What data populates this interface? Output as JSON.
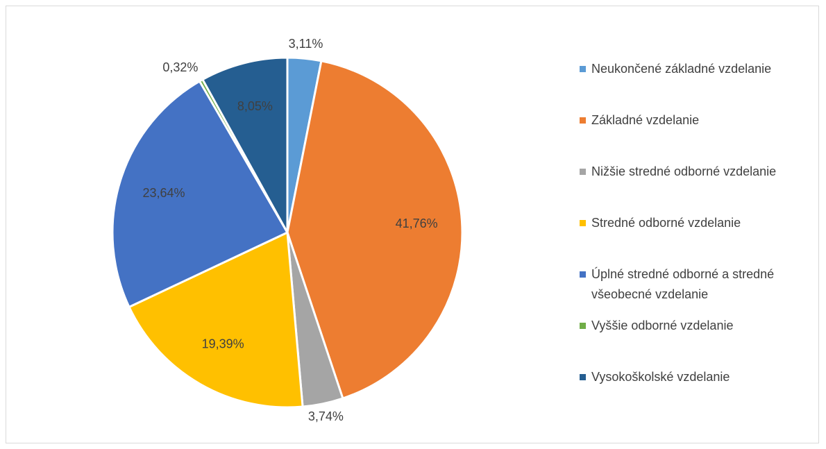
{
  "chart_data": {
    "type": "pie",
    "categories": [
      "Neukončené základné vzdelanie",
      "Základné vzdelanie",
      "Nižšie stredné odborné vzdelanie",
      "Stredné odborné vzdelanie",
      "Úplné stredné odborné a stredné všeobecné vzdelanie",
      "Vyššie odborné vzdelanie",
      "Vysokoškolské vzdelanie"
    ],
    "values": [
      3.11,
      41.76,
      3.74,
      19.39,
      23.64,
      0.32,
      8.05
    ],
    "value_labels": [
      "3,11%",
      "41,76%",
      "3,74%",
      "19,39%",
      "23,64%",
      "0,32%",
      "8,05%"
    ],
    "colors": [
      "#5b9bd5",
      "#ed7d31",
      "#a5a5a5",
      "#ffc000",
      "#4472c4",
      "#70ad47",
      "#255e91"
    ],
    "legend": "right"
  }
}
